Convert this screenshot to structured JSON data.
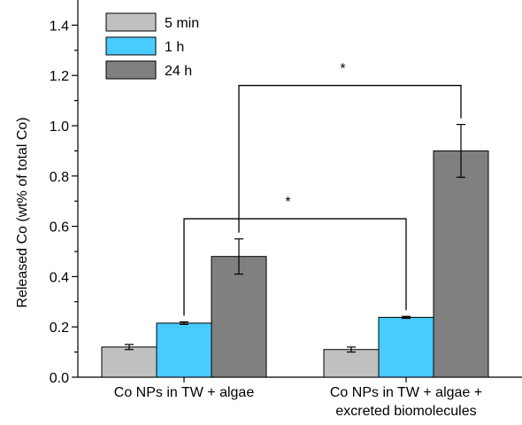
{
  "chart_data": {
    "type": "bar",
    "title": "",
    "xlabel": "",
    "ylabel": "Released Co (wt% of total Co)",
    "ylim": [
      0,
      1.5
    ],
    "yticks": [
      "0.0",
      "0.2",
      "0.4",
      "0.6",
      "0.8",
      "1.0",
      "1.2",
      "1.4"
    ],
    "categories": [
      [
        "Co NPs in TW + algae"
      ],
      [
        "Co NPs in TW + algae +",
        "excreted biomolecules"
      ]
    ],
    "series": [
      {
        "name": "5 min",
        "color": "#c0c0c0",
        "values": [
          0.12,
          0.11
        ],
        "errors": [
          0.01,
          0.01
        ]
      },
      {
        "name": "1 h",
        "color": "#48cbff",
        "values": [
          0.215,
          0.238
        ],
        "errors": [
          0.005,
          0.004
        ]
      },
      {
        "name": "24 h",
        "color": "#808080",
        "values": [
          0.48,
          0.9
        ],
        "errors": [
          0.07,
          0.105
        ]
      }
    ],
    "legend_position": "top-left",
    "grid": false,
    "significance": [
      {
        "label": "*",
        "from": {
          "category": 0,
          "series": 1
        },
        "to": {
          "category": 1,
          "series": 1
        }
      },
      {
        "label": "*",
        "from": {
          "category": 0,
          "series": 2
        },
        "to": {
          "category": 1,
          "series": 2
        }
      }
    ]
  }
}
